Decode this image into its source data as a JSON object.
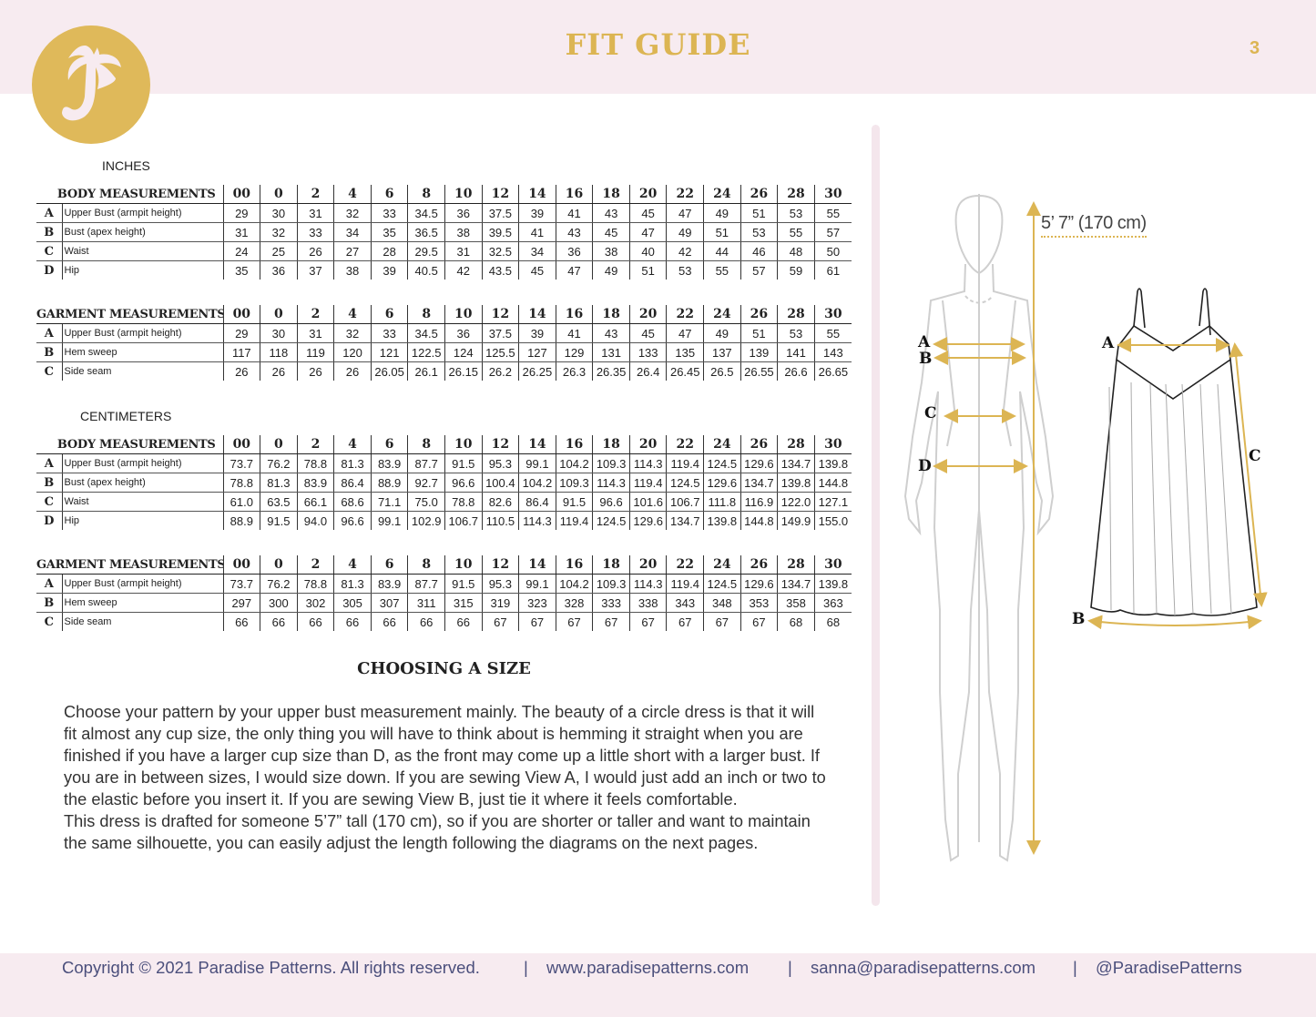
{
  "header": {
    "title": "FIT GUIDE",
    "page_number": "3",
    "logo_letter": "P"
  },
  "colors": {
    "gold": "#dcb553",
    "pink": "#f7ebf0",
    "navy": "#4b4f7c"
  },
  "sizes": [
    "00",
    "0",
    "2",
    "4",
    "6",
    "8",
    "10",
    "12",
    "14",
    "16",
    "18",
    "20",
    "22",
    "24",
    "26",
    "28",
    "30"
  ],
  "inches": {
    "label": "INCHES",
    "body": {
      "title": "BODY MEASUREMENTS",
      "rows": [
        {
          "letter": "A",
          "name": "Upper Bust (armpit height)",
          "values": [
            "29",
            "30",
            "31",
            "32",
            "33",
            "34.5",
            "36",
            "37.5",
            "39",
            "41",
            "43",
            "45",
            "47",
            "49",
            "51",
            "53",
            "55"
          ]
        },
        {
          "letter": "B",
          "name": "Bust (apex height)",
          "values": [
            "31",
            "32",
            "33",
            "34",
            "35",
            "36.5",
            "38",
            "39.5",
            "41",
            "43",
            "45",
            "47",
            "49",
            "51",
            "53",
            "55",
            "57"
          ]
        },
        {
          "letter": "C",
          "name": "Waist",
          "values": [
            "24",
            "25",
            "26",
            "27",
            "28",
            "29.5",
            "31",
            "32.5",
            "34",
            "36",
            "38",
            "40",
            "42",
            "44",
            "46",
            "48",
            "50"
          ]
        },
        {
          "letter": "D",
          "name": "Hip",
          "values": [
            "35",
            "36",
            "37",
            "38",
            "39",
            "40.5",
            "42",
            "43.5",
            "45",
            "47",
            "49",
            "51",
            "53",
            "55",
            "57",
            "59",
            "61"
          ]
        }
      ]
    },
    "garment": {
      "title": "GARMENT MEASUREMENTS",
      "rows": [
        {
          "letter": "A",
          "name": "Upper Bust (armpit height)",
          "values": [
            "29",
            "30",
            "31",
            "32",
            "33",
            "34.5",
            "36",
            "37.5",
            "39",
            "41",
            "43",
            "45",
            "47",
            "49",
            "51",
            "53",
            "55"
          ]
        },
        {
          "letter": "B",
          "name": "Hem sweep",
          "values": [
            "117",
            "118",
            "119",
            "120",
            "121",
            "122.5",
            "124",
            "125.5",
            "127",
            "129",
            "131",
            "133",
            "135",
            "137",
            "139",
            "141",
            "143"
          ]
        },
        {
          "letter": "C",
          "name": "Side seam",
          "values": [
            "26",
            "26",
            "26",
            "26",
            "26.05",
            "26.1",
            "26.15",
            "26.2",
            "26.25",
            "26.3",
            "26.35",
            "26.4",
            "26.45",
            "26.5",
            "26.55",
            "26.6",
            "26.65"
          ]
        }
      ]
    }
  },
  "centimeters": {
    "label": "CENTIMETERS",
    "body": {
      "title": "BODY MEASUREMENTS",
      "rows": [
        {
          "letter": "A",
          "name": "Upper Bust (armpit height)",
          "values": [
            "73.7",
            "76.2",
            "78.8",
            "81.3",
            "83.9",
            "87.7",
            "91.5",
            "95.3",
            "99.1",
            "104.2",
            "109.3",
            "114.3",
            "119.4",
            "124.5",
            "129.6",
            "134.7",
            "139.8"
          ]
        },
        {
          "letter": "B",
          "name": "Bust (apex height)",
          "values": [
            "78.8",
            "81.3",
            "83.9",
            "86.4",
            "88.9",
            "92.7",
            "96.6",
            "100.4",
            "104.2",
            "109.3",
            "114.3",
            "119.4",
            "124.5",
            "129.6",
            "134.7",
            "139.8",
            "144.8"
          ]
        },
        {
          "letter": "C",
          "name": "Waist",
          "values": [
            "61.0",
            "63.5",
            "66.1",
            "68.6",
            "71.1",
            "75.0",
            "78.8",
            "82.6",
            "86.4",
            "91.5",
            "96.6",
            "101.6",
            "106.7",
            "111.8",
            "116.9",
            "122.0",
            "127.1"
          ]
        },
        {
          "letter": "D",
          "name": "Hip",
          "values": [
            "88.9",
            "91.5",
            "94.0",
            "96.6",
            "99.1",
            "102.9",
            "106.7",
            "110.5",
            "114.3",
            "119.4",
            "124.5",
            "129.6",
            "134.7",
            "139.8",
            "144.8",
            "149.9",
            "155.0"
          ]
        }
      ]
    },
    "garment": {
      "title": "GARMENT MEASUREMENTS",
      "rows": [
        {
          "letter": "A",
          "name": "Upper Bust (armpit height)",
          "values": [
            "73.7",
            "76.2",
            "78.8",
            "81.3",
            "83.9",
            "87.7",
            "91.5",
            "95.3",
            "99.1",
            "104.2",
            "109.3",
            "114.3",
            "119.4",
            "124.5",
            "129.6",
            "134.7",
            "139.8"
          ]
        },
        {
          "letter": "B",
          "name": "Hem sweep",
          "values": [
            "297",
            "300",
            "302",
            "305",
            "307",
            "311",
            "315",
            "319",
            "323",
            "328",
            "333",
            "338",
            "343",
            "348",
            "353",
            "358",
            "363"
          ]
        },
        {
          "letter": "C",
          "name": "Side seam",
          "values": [
            "66",
            "66",
            "66",
            "66",
            "66",
            "66",
            "66",
            "67",
            "67",
            "67",
            "67",
            "67",
            "67",
            "67",
            "67",
            "68",
            "68"
          ]
        }
      ]
    }
  },
  "choosing": {
    "title": "CHOOSING A SIZE",
    "paragraphs": [
      "Choose your pattern by your upper bust measurement mainly. The beauty of a circle dress is that it will fit almost any cup size, the only thing you will have to think about is hemming it straight when you are finished if you have a larger cup size than D, as the front may come up a little short with a larger bust. If you are in between sizes, I would size down. If you are sewing View A, I would just add an inch or two to the elastic before you insert it. If you are sewing View B, just tie it where it feels comfortable.",
      "This dress is drafted for someone 5’7” tall (170 cm), so if you are shorter or taller and want to maintain the same silhouette, you can easily adjust the length following the diagrams on the next pages."
    ]
  },
  "figure": {
    "height_label": "5’ 7” (170 cm)",
    "body_labels": [
      "A",
      "B",
      "C",
      "D"
    ],
    "dress_labels": [
      "A",
      "B",
      "C"
    ]
  },
  "footer": {
    "copyright": "Copyright © 2021 Paradise Patterns. All rights reserved.",
    "separator": "|",
    "website": "www.paradisepatterns.com",
    "email": "sanna@paradisepatterns.com",
    "social": "@ParadisePatterns"
  }
}
